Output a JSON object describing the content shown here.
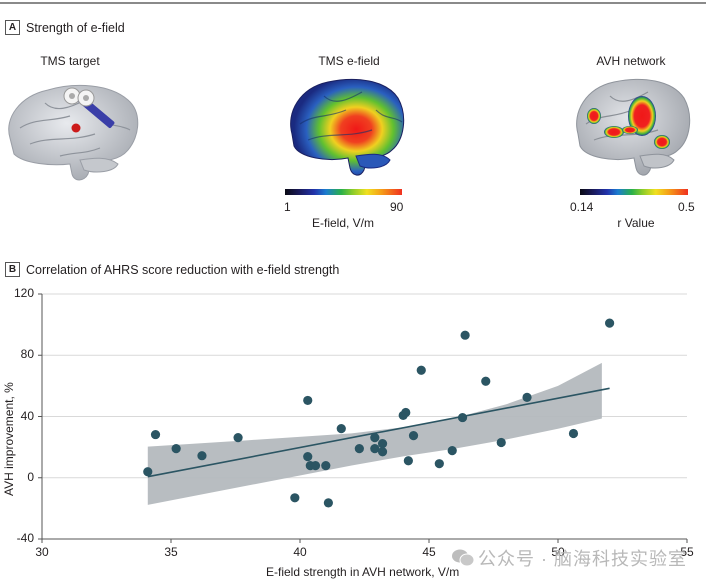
{
  "panel_a": {
    "letter": "A",
    "title": "Strength of e-field",
    "images": [
      {
        "title": "TMS target"
      },
      {
        "title": "TMS e-field",
        "colorbar": {
          "min_label": "1",
          "max_label": "90",
          "title": "E-field, V/m"
        }
      },
      {
        "title": "AVH network",
        "colorbar": {
          "min_label": "0.14",
          "max_label": "0.5",
          "title": "r Value"
        }
      }
    ]
  },
  "panel_b": {
    "letter": "B",
    "title": "Correlation of AHRS score reduction with e-field strength"
  },
  "watermark": "公众号 · 脑海科技实验室",
  "colors": {
    "point": "#2b5563",
    "line": "#2b5563",
    "band": "#b4b9be",
    "grid": "#d9d9d9",
    "axis": "#555555"
  },
  "chart_data": {
    "type": "scatter",
    "title": "Correlation of AHRS score reduction with e-field strength",
    "xlabel": "E-field strength in AVH network, V/m",
    "ylabel": "AVH improvement, %",
    "xlim": [
      30,
      55
    ],
    "ylim": [
      -40,
      120
    ],
    "xticks": [
      30,
      35,
      40,
      45,
      50,
      55
    ],
    "yticks": [
      -40,
      0,
      40,
      80,
      120
    ],
    "grid": "horizontal",
    "legend": "none",
    "points": [
      [
        34.1,
        3.9
      ],
      [
        34.4,
        28.2
      ],
      [
        35.2,
        19.0
      ],
      [
        36.2,
        14.4
      ],
      [
        37.6,
        26.2
      ],
      [
        39.8,
        -13.1
      ],
      [
        40.3,
        50.5
      ],
      [
        40.3,
        13.8
      ],
      [
        40.4,
        7.9
      ],
      [
        40.6,
        7.9
      ],
      [
        41.0,
        7.9
      ],
      [
        41.1,
        -16.4
      ],
      [
        41.6,
        32.1
      ],
      [
        42.3,
        19.0
      ],
      [
        42.9,
        26.2
      ],
      [
        42.9,
        19.0
      ],
      [
        43.2,
        22.3
      ],
      [
        43.2,
        17.0
      ],
      [
        44.0,
        40.7
      ],
      [
        44.1,
        42.6
      ],
      [
        44.2,
        11.1
      ],
      [
        44.4,
        27.5
      ],
      [
        44.7,
        70.2
      ],
      [
        45.4,
        9.2
      ],
      [
        45.9,
        17.7
      ],
      [
        46.3,
        39.3
      ],
      [
        46.4,
        93.1
      ],
      [
        47.2,
        63.0
      ],
      [
        47.8,
        23.0
      ],
      [
        48.8,
        52.5
      ],
      [
        50.6,
        28.9
      ],
      [
        52.0,
        101.0
      ]
    ],
    "regression_line": {
      "x": [
        34.1,
        52.0
      ],
      "y": [
        0.7,
        58.4
      ]
    },
    "confidence_band": {
      "x": [
        34.1,
        38.0,
        42.0,
        44.0,
        46.0,
        48.0,
        50.0,
        51.7
      ],
      "upper": [
        20.3,
        24.5,
        29.0,
        33.0,
        39.0,
        48.0,
        60.0,
        75.0
      ],
      "lower": [
        -17.7,
        -5.0,
        8.0,
        14.0,
        19.0,
        25.0,
        32.0,
        38.7
      ]
    }
  }
}
